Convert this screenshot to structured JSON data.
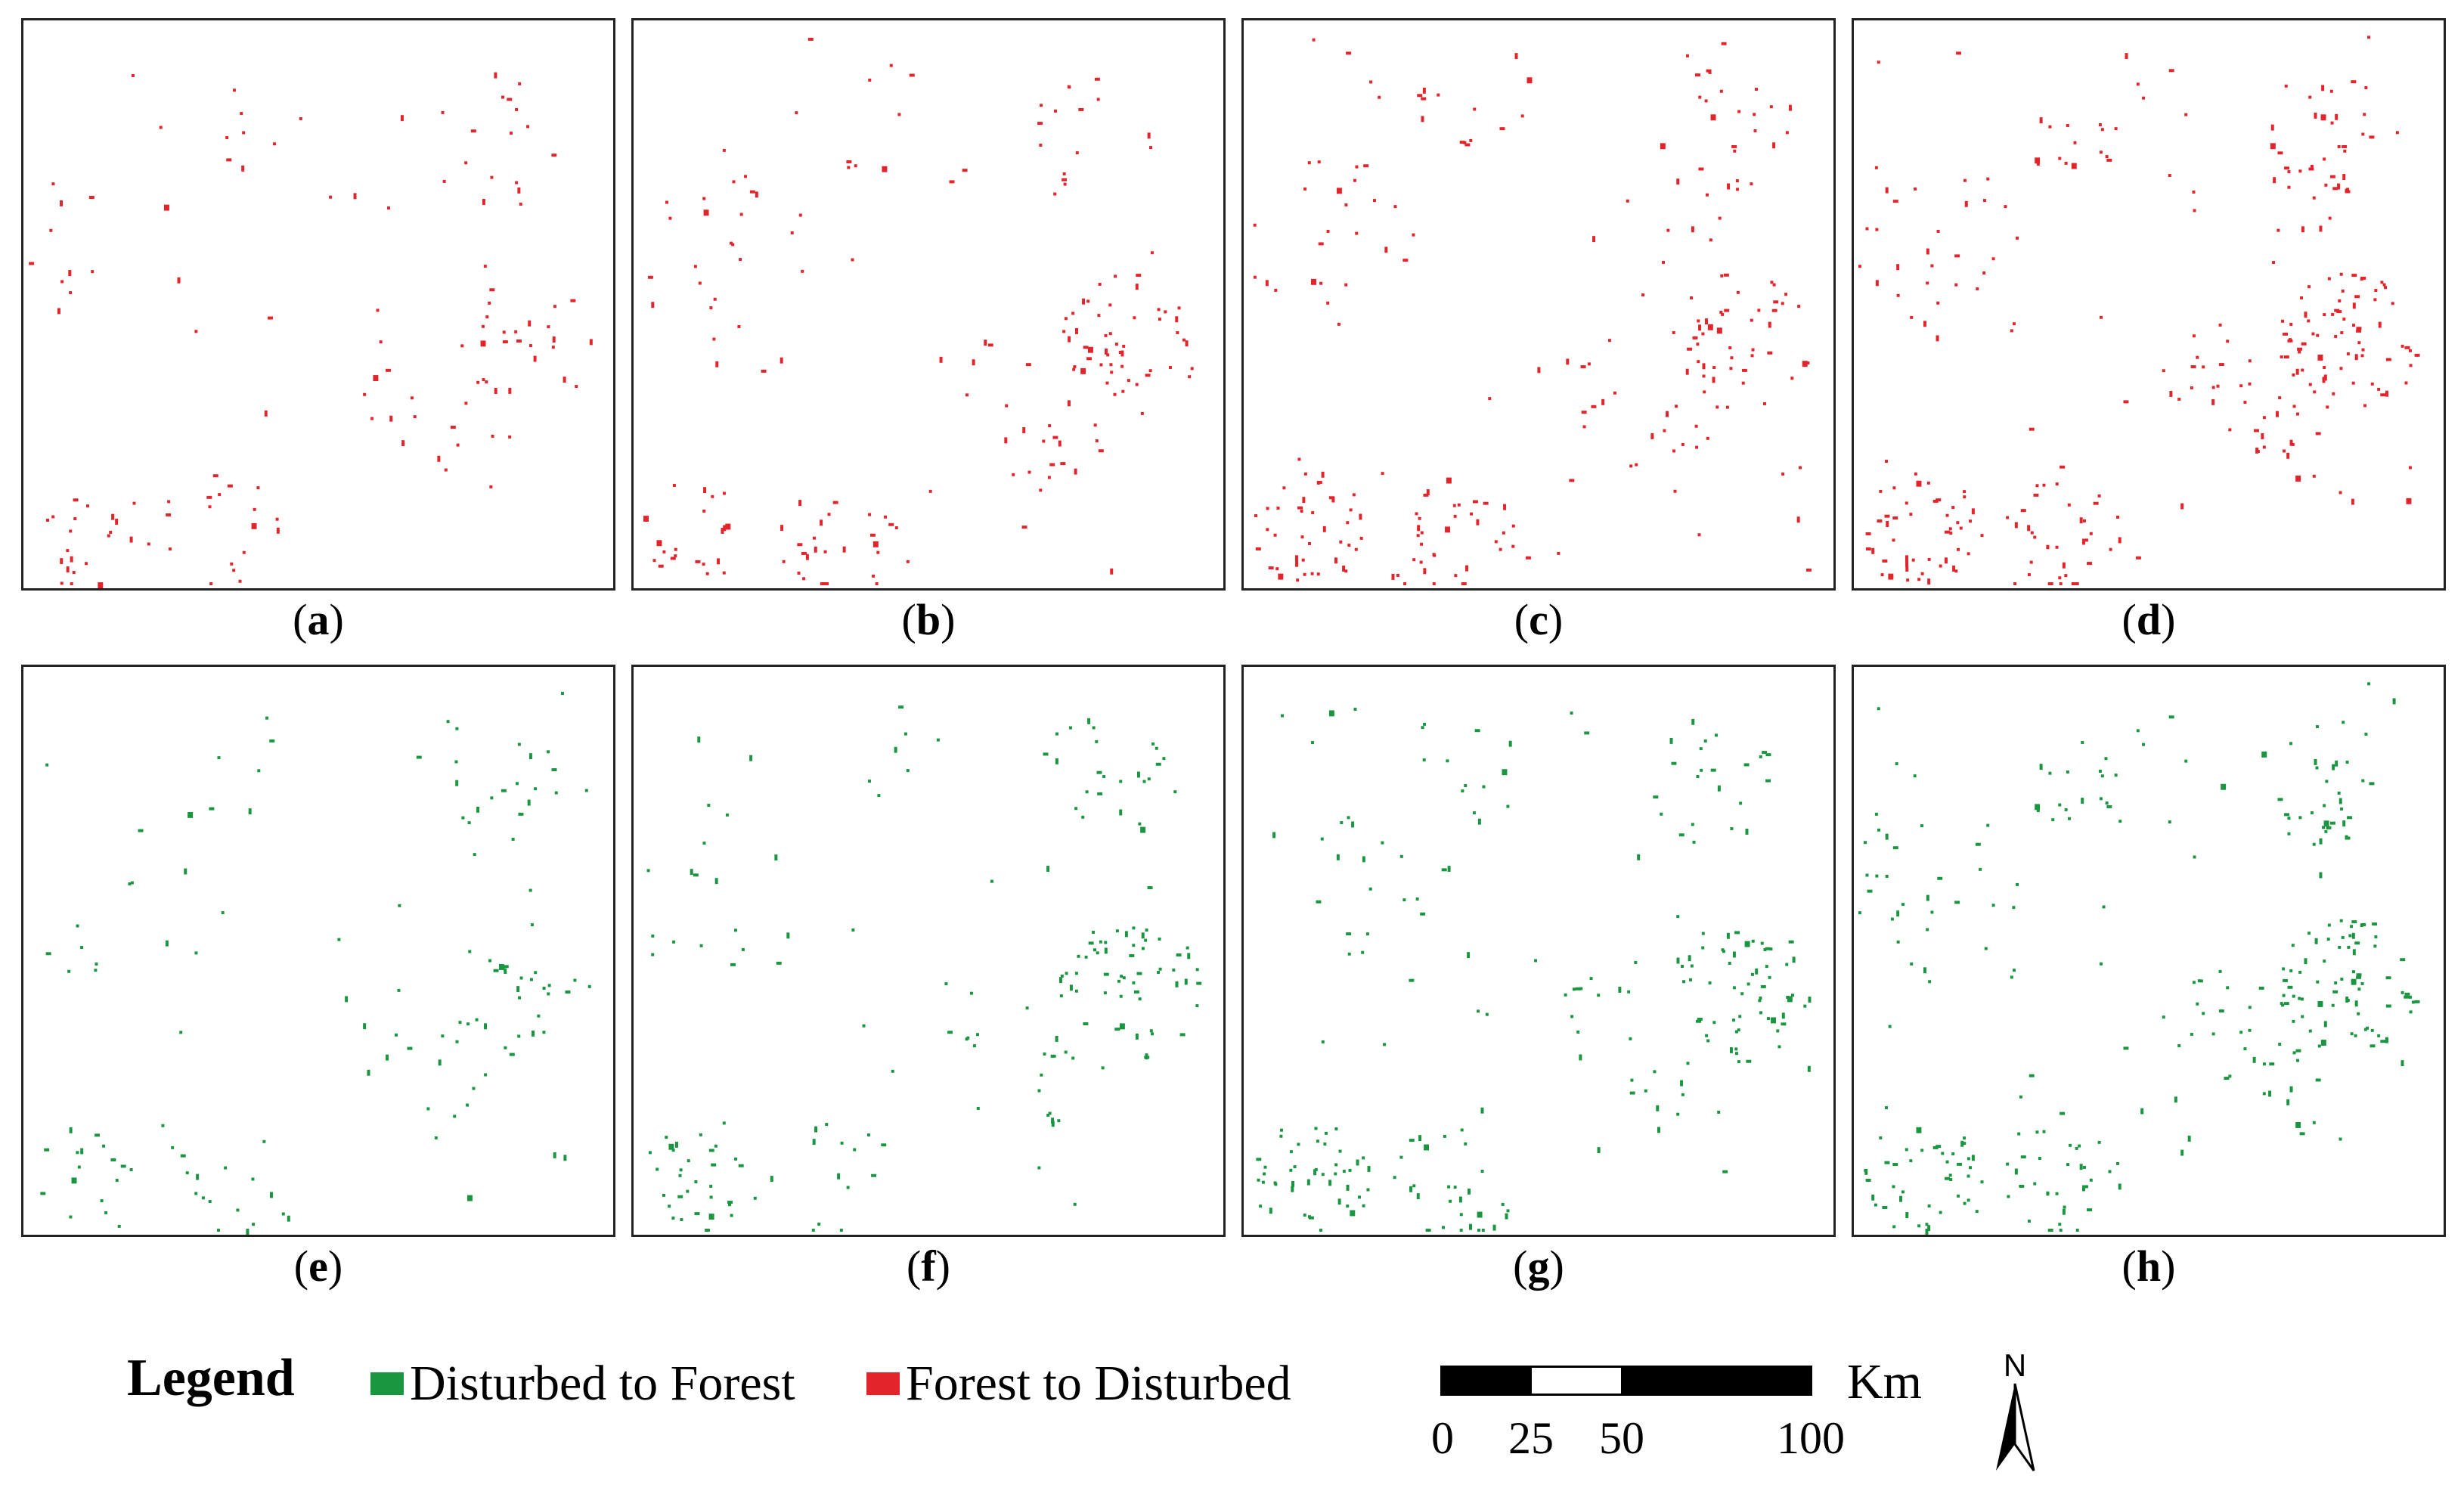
{
  "panels": [
    {
      "id": "a",
      "caption_letter": "a",
      "color": "#e3242b",
      "seed": 11,
      "density": 0.35
    },
    {
      "id": "b",
      "caption_letter": "b",
      "color": "#e3242b",
      "seed": 23,
      "density": 0.55
    },
    {
      "id": "c",
      "caption_letter": "c",
      "color": "#e3242b",
      "seed": 37,
      "density": 0.75
    },
    {
      "id": "d",
      "caption_letter": "d",
      "color": "#e3242b",
      "seed": 53,
      "density": 1.0
    },
    {
      "id": "e",
      "caption_letter": "e",
      "color": "#1a9641",
      "seed": 61,
      "density": 0.35
    },
    {
      "id": "f",
      "caption_letter": "f",
      "color": "#1a9641",
      "seed": 71,
      "density": 0.55
    },
    {
      "id": "g",
      "caption_letter": "g",
      "color": "#1a9641",
      "seed": 83,
      "density": 0.75
    },
    {
      "id": "h",
      "caption_letter": "h",
      "color": "#1a9641",
      "seed": 97,
      "density": 1.0
    }
  ],
  "legend": {
    "title": "Legend",
    "items": [
      {
        "label": "Disturbed to Forest",
        "color": "#1a9641"
      },
      {
        "label": "Forest to Disturbed",
        "color": "#e3242b"
      }
    ]
  },
  "scalebar": {
    "unit": "Km",
    "ticks": [
      "0",
      "25",
      "50",
      "100"
    ]
  },
  "north_arrow": {
    "label": "N"
  }
}
